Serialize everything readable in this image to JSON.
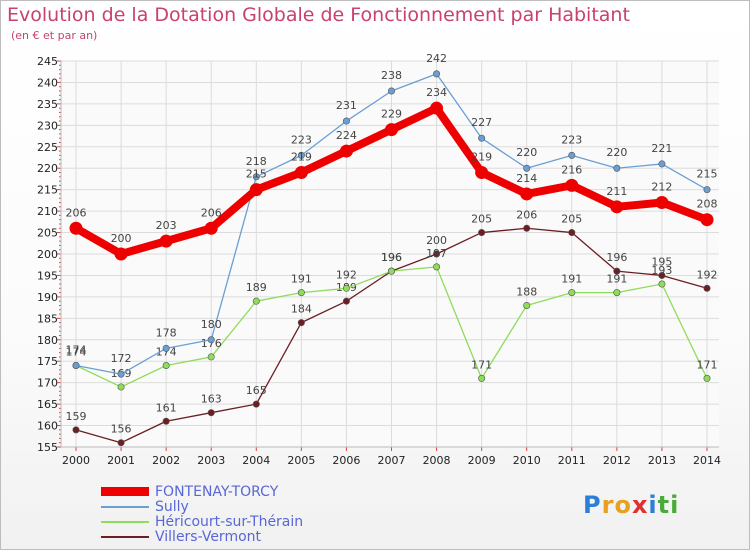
{
  "chart_data": {
    "type": "line",
    "title": "Evolution de la Dotation Globale de Fonctionnement par Habitant",
    "subtitle": "(en € et par an)",
    "xlabel": "",
    "ylabel": "",
    "ylim": [
      155,
      245
    ],
    "yticks": [
      155,
      160,
      165,
      170,
      175,
      180,
      185,
      190,
      195,
      200,
      205,
      210,
      215,
      220,
      225,
      230,
      235,
      240,
      245
    ],
    "categories": [
      "2000",
      "2001",
      "2002",
      "2003",
      "2004",
      "2005",
      "2006",
      "2007",
      "2008",
      "2009",
      "2010",
      "2011",
      "2012",
      "2013",
      "2014"
    ],
    "grid": true,
    "series": [
      {
        "name": "Villers-Vermont",
        "color": "#6b1f24",
        "values": [
          159,
          156,
          161,
          163,
          165,
          184,
          189,
          196,
          200,
          205,
          206,
          205,
          196,
          195,
          192
        ]
      },
      {
        "name": "Héricourt-sur-Thérain",
        "color": "#8fdc5a",
        "values": [
          174,
          169,
          174,
          176,
          189,
          191,
          192,
          196,
          197,
          171,
          188,
          191,
          191,
          193,
          171
        ]
      },
      {
        "name": "Sully",
        "color": "#6a9fd4",
        "values": [
          174,
          172,
          178,
          180,
          218,
          223,
          231,
          238,
          242,
          227,
          220,
          223,
          220,
          221,
          215
        ]
      },
      {
        "name": "FONTENAY-TORCY",
        "color": "#ee0000",
        "values": [
          206,
          200,
          203,
          206,
          215,
          219,
          224,
          229,
          234,
          219,
          214,
          216,
          211,
          212,
          208
        ]
      }
    ],
    "legend_position": "bottom-left"
  },
  "legend": [
    {
      "name": "FONTENAY-TORCY",
      "color": "#ee0000"
    },
    {
      "name": "Sully",
      "color": "#6a9fd4"
    },
    {
      "name": "Héricourt-sur-Thérain",
      "color": "#8fdc5a"
    },
    {
      "name": "Villers-Vermont",
      "color": "#6b1f24"
    }
  ],
  "logo": {
    "letters": [
      "P",
      "r",
      "o",
      "x",
      "i",
      "t",
      "i"
    ],
    "colors": [
      "#2b7fd8",
      "#e8a020",
      "#e8a020",
      "#e03030",
      "#2b7fd8",
      "#4aaa3a",
      "#4aaa3a"
    ]
  }
}
